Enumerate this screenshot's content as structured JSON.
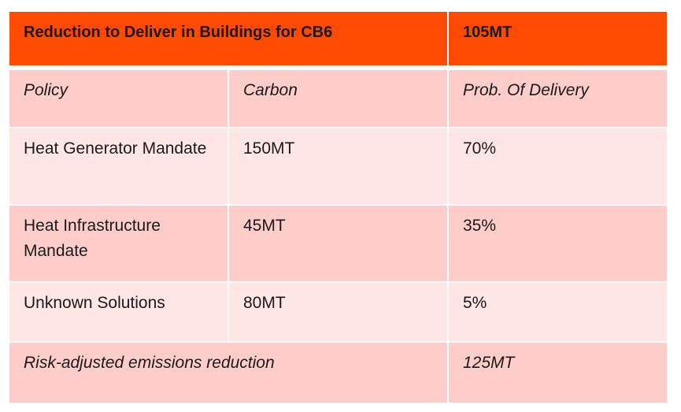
{
  "header": {
    "title": "Reduction to Deliver in Buildings for CB6",
    "target": "105MT"
  },
  "columns": {
    "policy": "Policy",
    "carbon": "Carbon",
    "probability": "Prob. Of Delivery"
  },
  "rows": [
    {
      "policy": "Heat Generator Mandate",
      "carbon": "150MT",
      "probability": "70%"
    },
    {
      "policy": "Heat Infrastructure Mandate",
      "carbon": "45MT",
      "probability": "35%"
    },
    {
      "policy": "Unknown Solutions",
      "carbon": "80MT",
      "probability": "5%"
    }
  ],
  "footer": {
    "label": "Risk-adjusted emissions reduction",
    "value": "125MT"
  },
  "colors": {
    "header_bg": "#ff4a00",
    "row_dark": "#ffcdc9",
    "row_light": "#ffe6e5"
  }
}
